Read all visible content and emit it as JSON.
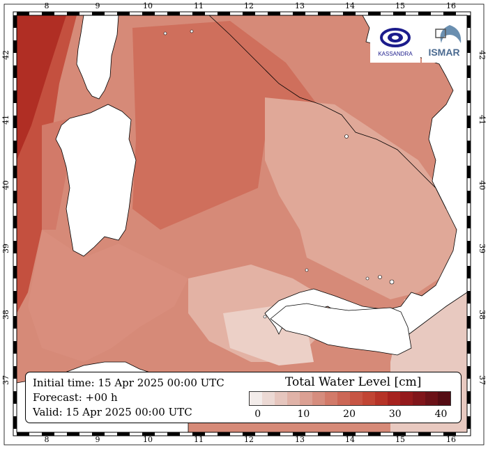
{
  "map": {
    "lon_ticks": [
      "8",
      "9",
      "10",
      "11",
      "12",
      "13",
      "14",
      "15",
      "16"
    ],
    "lat_ticks": [
      "37",
      "38",
      "39",
      "40",
      "41",
      "42"
    ]
  },
  "info": {
    "initial_time": "Initial time: 15 Apr 2025 00:00 UTC",
    "forecast": "Forecast: +00 h",
    "valid": "Valid: 15 Apr 2025 00:00 UTC"
  },
  "legend": {
    "title": "Total Water Level [cm]",
    "ticks": [
      "0",
      "10",
      "20",
      "30",
      "40"
    ],
    "colors": [
      "#f3ecea",
      "#ecd9d4",
      "#e6c6be",
      "#e0b3a8",
      "#dba093",
      "#d68d7e",
      "#d27a69",
      "#cc6756",
      "#c75544",
      "#c14534",
      "#b63327",
      "#a6221e",
      "#941a1c",
      "#80151a",
      "#6b1117",
      "#550c13"
    ]
  },
  "logos": {
    "kassandra_text": "KASSANDRA",
    "ismar_text": "ISMAR"
  },
  "colors": {
    "land": "#ffffff",
    "sea_low": "#e8c9c0",
    "sea_mid": "#d4816f",
    "sea_high": "#c85d49",
    "sea_max": "#a81f1a"
  }
}
